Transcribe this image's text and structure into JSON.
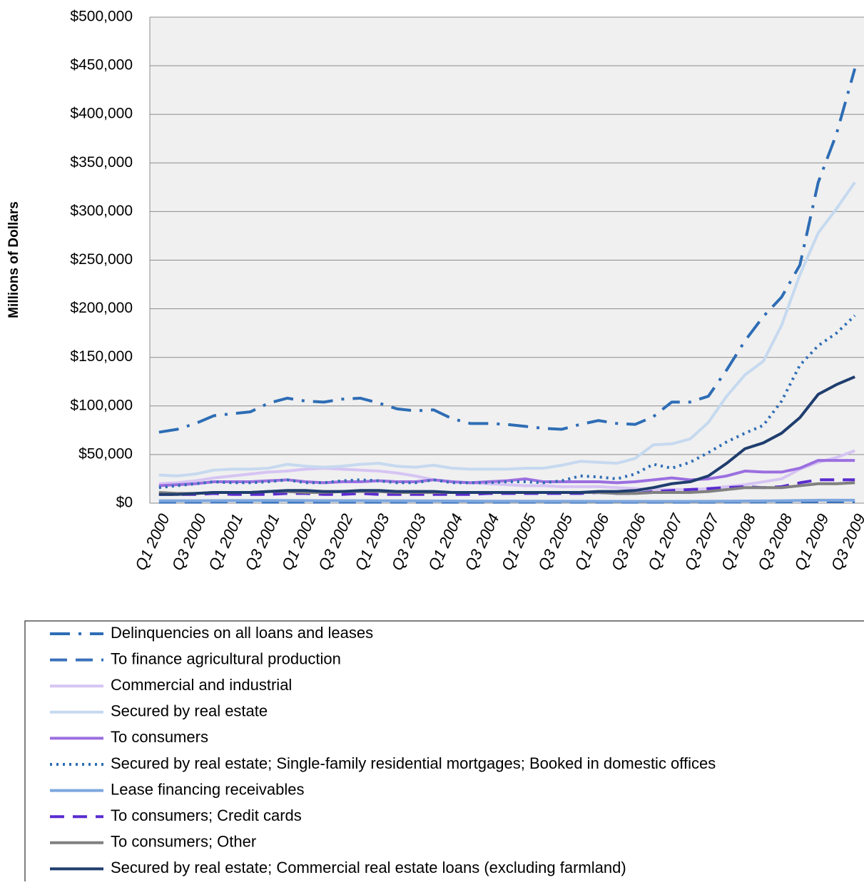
{
  "chart_data": {
    "type": "line",
    "y_label": "Millions of Dollars",
    "categories": [
      "Q1 2000",
      null,
      "Q3 2000",
      null,
      "Q1 2001",
      null,
      "Q3 2001",
      null,
      "Q1 2002",
      null,
      "Q3 2002",
      null,
      "Q1 2003",
      null,
      "Q3 2003",
      null,
      "Q1 2004",
      null,
      "Q3 2004",
      null,
      "Q1 2005",
      null,
      "Q3 2005",
      null,
      "Q1 2006",
      null,
      "Q3 2006",
      null,
      "Q1 2007",
      null,
      "Q3 2007",
      null,
      "Q1 2008",
      null,
      "Q3 2008",
      null,
      "Q1 2009",
      null,
      "Q3 2009"
    ],
    "ylim": [
      0,
      500000
    ],
    "yticks": [
      {
        "value": 0,
        "label": "$0"
      },
      {
        "value": 50000,
        "label": "$50,000"
      },
      {
        "value": 100000,
        "label": "$100,000"
      },
      {
        "value": 150000,
        "label": "$150,000"
      },
      {
        "value": 200000,
        "label": "$200,000"
      },
      {
        "value": 250000,
        "label": "$250,000"
      },
      {
        "value": 300000,
        "label": "$300,000"
      },
      {
        "value": 350000,
        "label": "$350,000"
      },
      {
        "value": 400000,
        "label": "$400,000"
      },
      {
        "value": 450000,
        "label": "$450,000"
      },
      {
        "value": 500000,
        "label": "$500,000"
      }
    ],
    "grid": true,
    "legend": "bottom",
    "series": [
      {
        "name": "Delinquencies on all loans and leases",
        "color": "#2e6db5",
        "dash": "28 12 4 12",
        "values": [
          73000,
          76000,
          82000,
          90000,
          92000,
          94000,
          103000,
          108000,
          105000,
          104000,
          107000,
          108000,
          103000,
          97000,
          95000,
          96000,
          87000,
          82000,
          82000,
          81000,
          79000,
          77000,
          76000,
          81000,
          85000,
          82000,
          81000,
          89000,
          104000,
          104000,
          110000,
          137000,
          167000,
          192000,
          212000,
          245000,
          330000,
          380000,
          447000
        ]
      },
      {
        "name": "To finance agricultural production",
        "color": "#3a72bb",
        "dash": "24 12",
        "values": [
          1000,
          1000,
          1000,
          1100,
          1200,
          1100,
          1000,
          1000,
          1000,
          1000,
          1000,
          1000,
          1000,
          1000,
          1000,
          1000,
          1000,
          1000,
          1000,
          1000,
          1000,
          1000,
          1000,
          1000,
          1000,
          1000,
          1000,
          1000,
          1000,
          1000,
          1000,
          1100,
          1200,
          1200,
          1300,
          1400,
          1400,
          1500,
          1500
        ]
      },
      {
        "name": "Commercial and industrial",
        "color": "#d6c4f3",
        "dash": "",
        "values": [
          20000,
          21000,
          23000,
          26000,
          28000,
          30000,
          32000,
          33000,
          35000,
          36000,
          35000,
          34000,
          33000,
          31000,
          28000,
          24000,
          22000,
          21000,
          20000,
          19000,
          18000,
          18000,
          17000,
          17000,
          17000,
          16000,
          15000,
          14000,
          14000,
          14000,
          15000,
          17000,
          19000,
          22000,
          25000,
          35000,
          42000,
          47000,
          54000
        ]
      },
      {
        "name": "Secured by real estate",
        "color": "#c6d9ef",
        "dash": "",
        "values": [
          29000,
          28000,
          30000,
          34000,
          35000,
          35000,
          36000,
          40000,
          38000,
          37000,
          38000,
          40000,
          41000,
          38000,
          37000,
          39000,
          36000,
          35000,
          35000,
          35000,
          36000,
          36000,
          39000,
          43000,
          42000,
          41000,
          46000,
          60000,
          61000,
          66000,
          83000,
          110000,
          132000,
          146000,
          183000,
          235000,
          278000,
          303000,
          330000
        ]
      },
      {
        "name": "To consumers",
        "color": "#9b6fe0",
        "dash": "",
        "values": [
          18000,
          19000,
          20000,
          22000,
          22000,
          22000,
          23000,
          24000,
          22000,
          21000,
          22000,
          22000,
          23000,
          22000,
          22000,
          24000,
          22000,
          21000,
          22000,
          23000,
          25000,
          22000,
          22000,
          22000,
          22000,
          21000,
          22000,
          24000,
          26000,
          24000,
          25000,
          28000,
          33000,
          32000,
          32000,
          36000,
          44000,
          44000,
          44000
        ]
      },
      {
        "name": "Secured by real estate; Single-family residential mortgages; Booked in domestic offices",
        "color": "#2e6db5",
        "dash": "3 6",
        "values": [
          16000,
          18000,
          20000,
          22000,
          21000,
          21000,
          22000,
          24000,
          21000,
          21000,
          23000,
          24000,
          23000,
          21000,
          21000,
          24000,
          21000,
          21000,
          21000,
          22000,
          22000,
          21000,
          23000,
          28000,
          27000,
          25000,
          30000,
          40000,
          36000,
          42000,
          52000,
          63000,
          72000,
          80000,
          105000,
          142000,
          162000,
          175000,
          193000
        ]
      },
      {
        "name": "Lease financing receivables",
        "color": "#7ea7de",
        "dash": "",
        "values": [
          2500,
          2500,
          2500,
          2600,
          2700,
          2700,
          2800,
          2800,
          2700,
          2600,
          2600,
          2600,
          2500,
          2400,
          2400,
          2300,
          2200,
          2100,
          2000,
          2000,
          2000,
          1900,
          1900,
          1900,
          1800,
          1800,
          1800,
          1800,
          1800,
          1800,
          1900,
          2000,
          2200,
          2300,
          2500,
          2800,
          3000,
          3000,
          3000
        ]
      },
      {
        "name": "To consumers; Credit cards",
        "color": "#5a2bd0",
        "dash": "20 12",
        "values": [
          9000,
          9000,
          9000,
          10000,
          9000,
          9000,
          9000,
          10000,
          10000,
          9000,
          9000,
          10000,
          9000,
          9000,
          9000,
          9000,
          9000,
          9000,
          10000,
          10000,
          10000,
          10000,
          10000,
          10000,
          11000,
          10000,
          10000,
          12000,
          13000,
          14000,
          15000,
          16000,
          17000,
          16000,
          17000,
          21000,
          24000,
          24000,
          24000
        ]
      },
      {
        "name": "To consumers; Other",
        "color": "#808080",
        "dash": "",
        "values": [
          11000,
          10000,
          10000,
          11000,
          11000,
          11000,
          12000,
          12000,
          11000,
          11000,
          12000,
          12000,
          12000,
          11000,
          11000,
          11000,
          11000,
          11000,
          11000,
          11000,
          11000,
          11000,
          11000,
          11000,
          11000,
          10000,
          10000,
          11000,
          11000,
          11000,
          12000,
          14000,
          16000,
          16000,
          16000,
          18000,
          20000,
          20000,
          21000
        ]
      },
      {
        "name": "Secured by real estate; Commercial real estate loans (excluding farmland)",
        "color": "#1f3d6e",
        "dash": "",
        "values": [
          9000,
          9000,
          10000,
          11000,
          11000,
          11000,
          12000,
          13000,
          13000,
          12000,
          12000,
          13000,
          13000,
          12000,
          12000,
          12000,
          11000,
          11000,
          11000,
          11000,
          11000,
          11000,
          11000,
          11000,
          12000,
          12000,
          13000,
          16000,
          20000,
          22000,
          28000,
          41000,
          56000,
          62000,
          72000,
          88000,
          112000,
          122000,
          130000
        ]
      }
    ]
  }
}
